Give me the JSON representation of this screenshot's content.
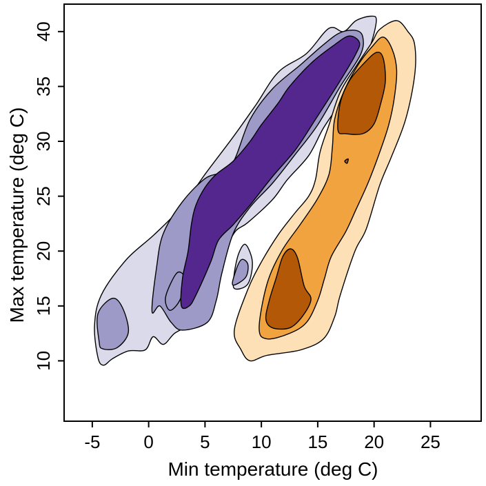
{
  "chart_data": {
    "type": "contour",
    "xlabel": "Min temperature (deg C)",
    "ylabel": "Max temperature (deg C)",
    "xlim": [
      -7.5,
      29.5
    ],
    "ylim": [
      4.5,
      42.5
    ],
    "x_ticks": [
      -5,
      0,
      5,
      10,
      15,
      20,
      25
    ],
    "y_ticks": [
      10,
      15,
      20,
      25,
      30,
      35,
      40
    ],
    "x_tick_labels": [
      "-5",
      "0",
      "5",
      "10",
      "15",
      "20",
      "25"
    ],
    "y_tick_labels": [
      "10",
      "15",
      "20",
      "25",
      "30",
      "35",
      "40"
    ],
    "grid": false,
    "legend": "none",
    "groups": [
      {
        "colors": [
          "#dadaeb",
          "#9e9ac8",
          "#54278f"
        ],
        "levels": [
          {
            "fill": "#dadaeb",
            "polygons": [
              [
                [
                  -4.5,
                  10.3
                ],
                [
                  -4.0,
                  9.6
                ],
                [
                  -3.2,
                  10.2
                ],
                [
                  -1.8,
                  10.9
                ],
                [
                  -0.3,
                  11.0
                ],
                [
                  0.4,
                  12.2
                ],
                [
                  1.3,
                  11.5
                ],
                [
                  2.3,
                  12.5
                ],
                [
                  3.6,
                  13.3
                ],
                [
                  5.0,
                  14.8
                ],
                [
                  6.0,
                  15.8
                ],
                [
                  6.5,
                  18.5
                ],
                [
                  6.8,
                  20.0
                ],
                [
                  7.7,
                  21.8
                ],
                [
                  8.8,
                  22.6
                ],
                [
                  11.0,
                  24.7
                ],
                [
                  12.3,
                  26.5
                ],
                [
                  14.2,
                  28.7
                ],
                [
                  15.5,
                  31.2
                ],
                [
                  17.0,
                  33.5
                ],
                [
                  18.4,
                  36.0
                ],
                [
                  19.6,
                  38.5
                ],
                [
                  20.2,
                  41.0
                ],
                [
                  19.7,
                  41.4
                ],
                [
                  18.4,
                  41.0
                ],
                [
                  17.3,
                  40.0
                ],
                [
                  16.0,
                  40.3
                ],
                [
                  14.0,
                  38.0
                ],
                [
                  11.5,
                  36.3
                ],
                [
                  9.5,
                  33.3
                ],
                [
                  7.5,
                  30.4
                ],
                [
                  5.0,
                  27.0
                ],
                [
                  3.0,
                  24.1
                ],
                [
                  0.5,
                  21.5
                ],
                [
                  -2.0,
                  19.2
                ],
                [
                  -4.2,
                  16.0
                ],
                [
                  -4.8,
                  13.2
                ]
              ],
              [
                [
                  7.6,
                  16.6
                ],
                [
                  8.8,
                  17.0
                ],
                [
                  9.2,
                  19.0
                ],
                [
                  8.6,
                  20.6
                ],
                [
                  8.0,
                  19.8
                ],
                [
                  7.6,
                  18.0
                ]
              ]
            ]
          },
          {
            "fill": "#9e9ac8",
            "polygons": [
              [
                [
                  -4.4,
                  11.8
                ],
                [
                  -4.1,
                  11.1
                ],
                [
                  -2.8,
                  11.2
                ],
                [
                  -1.8,
                  12.6
                ],
                [
                  -2.3,
                  14.8
                ],
                [
                  -3.2,
                  15.7
                ],
                [
                  -4.5,
                  14.3
                ]
              ],
              [
                [
                  0.3,
                  14.5
                ],
                [
                  1.0,
                  15.0
                ],
                [
                  2.0,
                  13.5
                ],
                [
                  3.0,
                  12.8
                ],
                [
                  5.2,
                  13.5
                ],
                [
                  6.0,
                  15.5
                ],
                [
                  6.5,
                  18.0
                ],
                [
                  7.5,
                  21.6
                ],
                [
                  9.0,
                  24.0
                ],
                [
                  11.0,
                  26.2
                ],
                [
                  13.0,
                  28.8
                ],
                [
                  15.0,
                  31.5
                ],
                [
                  17.0,
                  35.0
                ],
                [
                  18.8,
                  37.9
                ],
                [
                  19.0,
                  39.5
                ],
                [
                  18.4,
                  40.1
                ],
                [
                  17.0,
                  39.9
                ],
                [
                  15.5,
                  38.8
                ],
                [
                  13.5,
                  37.0
                ],
                [
                  11.0,
                  34.8
                ],
                [
                  9.0,
                  32.0
                ],
                [
                  7.6,
                  28.3
                ],
                [
                  6.5,
                  27.2
                ],
                [
                  5.0,
                  26.6
                ],
                [
                  3.0,
                  24.5
                ],
                [
                  1.3,
                  21.6
                ],
                [
                  0.7,
                  18.5
                ]
              ],
              [
                [
                  1.9,
                  14.6
                ],
                [
                  2.8,
                  15.6
                ],
                [
                  3.2,
                  17.5
                ],
                [
                  2.5,
                  18.0
                ],
                [
                  1.5,
                  15.8
                ]
              ],
              [
                [
                  7.5,
                  16.9
                ],
                [
                  8.6,
                  17.6
                ],
                [
                  8.8,
                  18.8
                ],
                [
                  8.2,
                  19.2
                ],
                [
                  7.6,
                  17.8
                ]
              ]
            ]
          },
          {
            "fill": "#54278f",
            "polygons": [
              [
                [
                  2.9,
                  15.0
                ],
                [
                  3.6,
                  15.0
                ],
                [
                  4.2,
                  16.0
                ],
                [
                  5.5,
                  19.0
                ],
                [
                  6.2,
                  21.0
                ],
                [
                  7.5,
                  22.4
                ],
                [
                  9.0,
                  24.2
                ],
                [
                  11.0,
                  26.8
                ],
                [
                  13.0,
                  29.2
                ],
                [
                  14.8,
                  32.0
                ],
                [
                  16.8,
                  35.2
                ],
                [
                  18.3,
                  37.8
                ],
                [
                  18.7,
                  39.0
                ],
                [
                  17.8,
                  39.6
                ],
                [
                  16.5,
                  38.8
                ],
                [
                  14.5,
                  37.2
                ],
                [
                  12.5,
                  35.0
                ],
                [
                  11.5,
                  33.5
                ],
                [
                  10.0,
                  31.5
                ],
                [
                  9.0,
                  30.0
                ],
                [
                  7.5,
                  28.2
                ],
                [
                  6.0,
                  27.0
                ],
                [
                  5.0,
                  25.8
                ],
                [
                  4.2,
                  24.2
                ],
                [
                  3.8,
                  22.5
                ],
                [
                  3.5,
                  20.0
                ],
                [
                  3.0,
                  17.5
                ]
              ]
            ]
          }
        ]
      },
      {
        "colors": [
          "#fee0b6",
          "#f1a340",
          "#b35806"
        ],
        "levels": [
          {
            "fill": "#fee0b6",
            "polygons": [
              [
                [
                  7.6,
                  12.8
                ],
                [
                  8.2,
                  11.0
                ],
                [
                  9.0,
                  10.0
                ],
                [
                  10.5,
                  10.5
                ],
                [
                  13.5,
                  11.0
                ],
                [
                  15.5,
                  12.0
                ],
                [
                  16.5,
                  14.0
                ],
                [
                  17.0,
                  16.0
                ],
                [
                  18.3,
                  20.0
                ],
                [
                  19.3,
                  22.0
                ],
                [
                  20.5,
                  26.0
                ],
                [
                  21.5,
                  28.5
                ],
                [
                  22.8,
                  32.0
                ],
                [
                  23.6,
                  36.0
                ],
                [
                  23.6,
                  38.8
                ],
                [
                  23.0,
                  40.0
                ],
                [
                  22.0,
                  41.0
                ],
                [
                  20.5,
                  40.2
                ],
                [
                  19.8,
                  39.0
                ],
                [
                  18.5,
                  37.0
                ],
                [
                  17.0,
                  34.5
                ],
                [
                  16.0,
                  31.5
                ],
                [
                  15.2,
                  29.0
                ],
                [
                  14.8,
                  26.5
                ],
                [
                  14.2,
                  25.0
                ],
                [
                  13.0,
                  23.5
                ],
                [
                  11.5,
                  21.5
                ],
                [
                  10.0,
                  19.0
                ],
                [
                  8.8,
                  16.5
                ]
              ]
            ]
          },
          {
            "fill": "#f1a340",
            "polygons": [
              [
                [
                  9.8,
                  13.0
                ],
                [
                  10.5,
                  12.0
                ],
                [
                  12.5,
                  12.5
                ],
                [
                  14.0,
                  13.5
                ],
                [
                  15.0,
                  15.5
                ],
                [
                  15.6,
                  17.5
                ],
                [
                  16.2,
                  19.5
                ],
                [
                  17.5,
                  21.8
                ],
                [
                  18.4,
                  23.8
                ],
                [
                  19.5,
                  26.3
                ],
                [
                  20.5,
                  29.0
                ],
                [
                  21.3,
                  31.5
                ],
                [
                  21.8,
                  34.0
                ],
                [
                  22.0,
                  36.5
                ],
                [
                  21.6,
                  38.4
                ],
                [
                  20.8,
                  39.5
                ],
                [
                  19.8,
                  38.6
                ],
                [
                  18.6,
                  37.0
                ],
                [
                  17.3,
                  34.5
                ],
                [
                  16.5,
                  32.0
                ],
                [
                  16.3,
                  29.5
                ],
                [
                  16.0,
                  27.0
                ],
                [
                  15.0,
                  24.8
                ],
                [
                  13.5,
                  22.5
                ],
                [
                  11.8,
                  20.0
                ],
                [
                  10.5,
                  17.0
                ]
              ]
            ]
          },
          {
            "fill": "#b35806",
            "polygons": [
              [
                [
                  10.4,
                  13.8
                ],
                [
                  11.0,
                  13.0
                ],
                [
                  12.5,
                  13.0
                ],
                [
                  13.6,
                  14.0
                ],
                [
                  14.4,
                  15.6
                ],
                [
                  13.8,
                  16.8
                ],
                [
                  13.2,
                  19.4
                ],
                [
                  12.6,
                  20.2
                ],
                [
                  11.9,
                  19.5
                ],
                [
                  11.3,
                  17.5
                ],
                [
                  10.7,
                  15.5
                ]
              ],
              [
                [
                  16.8,
                  31.0
                ],
                [
                  17.5,
                  30.7
                ],
                [
                  19.0,
                  30.7
                ],
                [
                  20.0,
                  31.6
                ],
                [
                  20.6,
                  33.5
                ],
                [
                  21.0,
                  35.5
                ],
                [
                  20.8,
                  37.6
                ],
                [
                  20.2,
                  38.1
                ],
                [
                  19.0,
                  37.0
                ],
                [
                  17.8,
                  35.5
                ],
                [
                  17.0,
                  33.5
                ]
              ],
              [
                [
                  17.4,
                  28.2
                ],
                [
                  17.7,
                  28.4
                ],
                [
                  17.6,
                  28.0
                ]
              ]
            ]
          }
        ]
      }
    ]
  }
}
